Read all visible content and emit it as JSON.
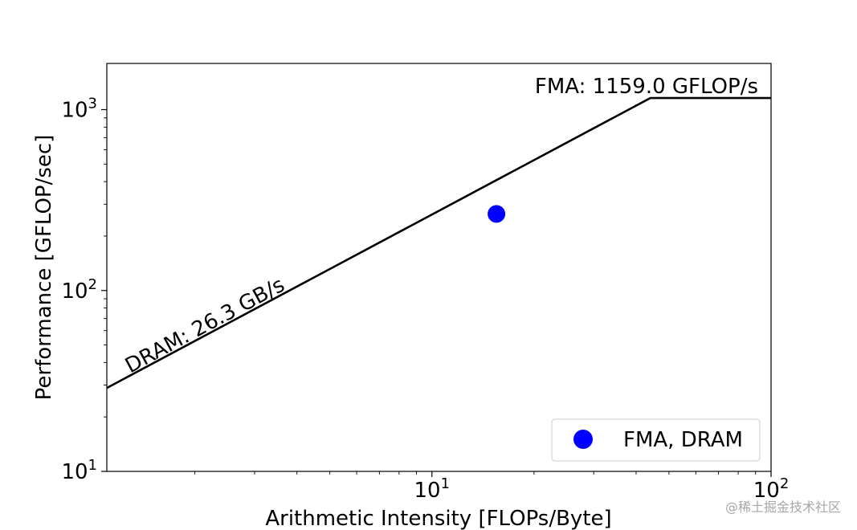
{
  "chart_data": {
    "type": "line",
    "title": "",
    "xlabel": "Arithmetic Intensity [FLOPs/Byte]",
    "ylabel": "Performance [GFLOP/sec]",
    "xscale": "log",
    "yscale": "log",
    "xlim": [
      1.1,
      100
    ],
    "ylim": [
      10,
      1800
    ],
    "x_ticks": [
      {
        "value": 10,
        "base": "10",
        "exp": "1"
      },
      {
        "value": 100,
        "base": "10",
        "exp": "2"
      }
    ],
    "y_ticks": [
      {
        "value": 10,
        "base": "10",
        "exp": "1"
      },
      {
        "value": 100,
        "base": "10",
        "exp": "2"
      },
      {
        "value": 1000,
        "base": "10",
        "exp": "3"
      }
    ],
    "grid": false,
    "series": [
      {
        "name": "",
        "kind": "roofline",
        "x": [
          1.1,
          44.07,
          100
        ],
        "y": [
          28.93,
          1159.0,
          1159.0
        ],
        "color": "#000000"
      },
      {
        "name": "FMA, DRAM",
        "kind": "scatter",
        "x": [
          15.5
        ],
        "y": [
          265
        ],
        "color": "#0000ff"
      }
    ],
    "annotations": [
      {
        "text": "DRAM: 26.3 GB/s",
        "anchor": "bandwidth-slope"
      },
      {
        "text": "FMA: 1159.0 GFLOP/s",
        "anchor": "compute-ceiling"
      }
    ],
    "legend": {
      "position": "lower-right",
      "entries": [
        "FMA, DRAM"
      ]
    }
  },
  "watermark": "@稀土掘金技术社区"
}
